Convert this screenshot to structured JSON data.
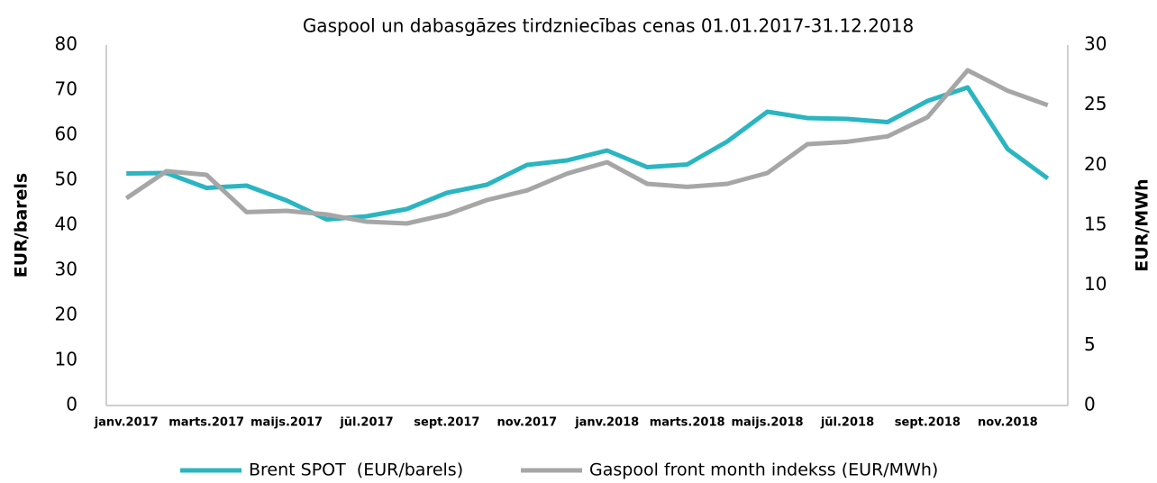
{
  "chart_data": {
    "type": "line",
    "title": "Gaspool un dabasgāzes tirdzniecības cenas 01.01.2017-31.12.2018",
    "y_label": "EUR/barels",
    "y2_label": "EUR/MWh",
    "categories": [
      "janv.2017",
      null,
      "marts.2017",
      null,
      "maijs.2017",
      null,
      "jūl.2017",
      null,
      "sept.2017",
      null,
      "nov.2017",
      null,
      "janv.2018",
      null,
      "marts.2018",
      null,
      "maijs.2018",
      null,
      "jūl.2018",
      null,
      "sept.2018",
      null,
      "nov.2018",
      null
    ],
    "series": [
      {
        "name": "Brent SPOT  (EUR/barels)",
        "color": "#2ab5c1",
        "values": [
          51.5,
          51.6,
          48.3,
          48.8,
          45.5,
          41.3,
          42.0,
          43.6,
          47.2,
          49.0,
          53.4,
          54.4,
          56.6,
          52.9,
          53.5,
          58.6,
          65.2,
          63.8,
          63.6,
          62.9,
          67.6,
          70.6,
          56.9,
          50.4
        ]
      },
      {
        "name": "Gaspool front month indekss (EUR/MWh)",
        "color": "#a6a6a6",
        "axis": "y2",
        "values": [
          17.25,
          19.5,
          19.2,
          16.1,
          16.2,
          15.9,
          15.3,
          15.15,
          15.9,
          17.1,
          17.9,
          19.3,
          20.25,
          18.45,
          18.2,
          18.45,
          19.35,
          21.75,
          21.95,
          22.4,
          24.0,
          27.9,
          26.2,
          25.0
        ]
      }
    ],
    "ylim": [
      0,
      80
    ],
    "yticks": [
      0,
      10,
      20,
      30,
      40,
      50,
      60,
      70,
      80
    ],
    "y2lim": [
      0,
      30
    ],
    "y2ticks": [
      0,
      5,
      10,
      15,
      20,
      25,
      30
    ],
    "legend": "bottom"
  }
}
